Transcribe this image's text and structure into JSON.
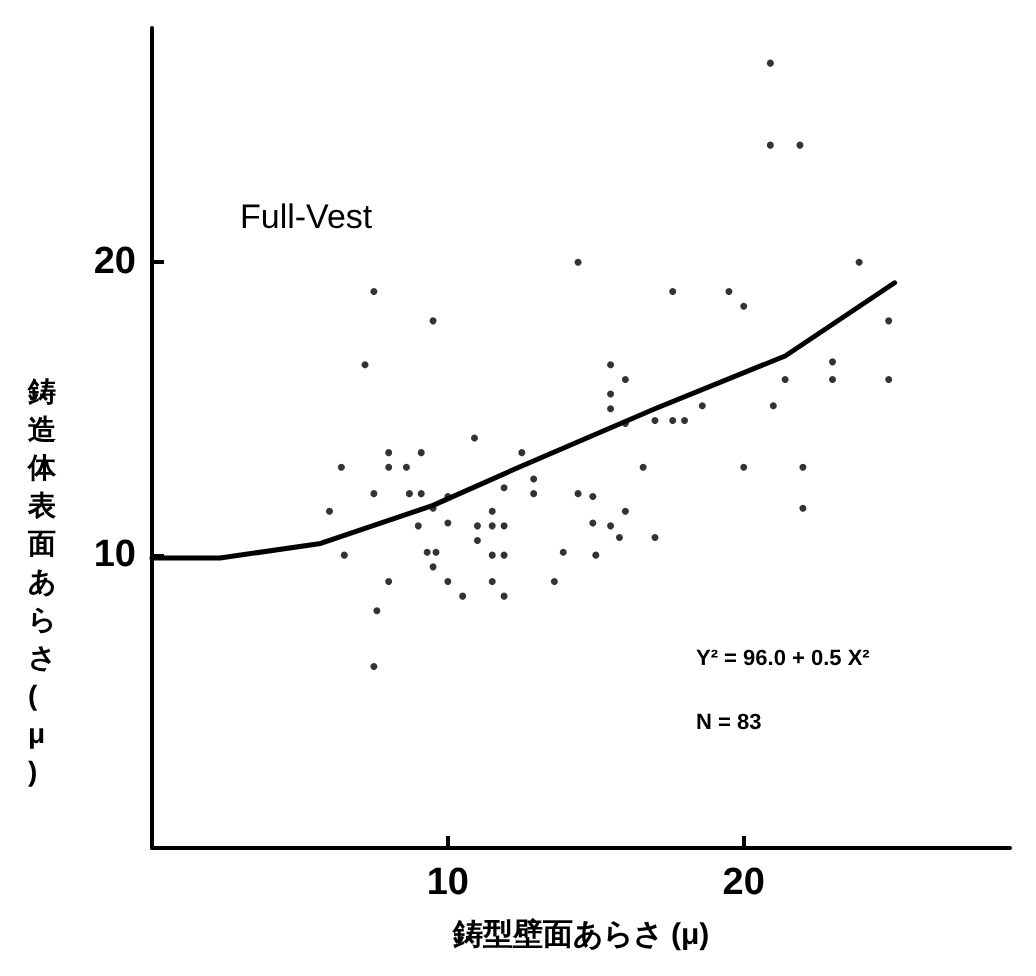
{
  "chart_data": {
    "type": "scatter",
    "xlabel": "鋳型壁面あらさ (μ)",
    "ylabel": "鋳造体表面あらさ(μ)",
    "xlim": [
      0,
      29
    ],
    "ylim": [
      0,
      28
    ],
    "xticks": [
      10,
      20
    ],
    "yticks": [
      10,
      20
    ],
    "grid": false,
    "marker": "circle",
    "annotations": [
      "Full-Vest",
      "Y² = 96.0 + 0.5 X²",
      "N = 83"
    ],
    "series": [
      {
        "color": "#000000",
        "x": [
          20.9,
          20.9,
          21.9,
          14.4,
          7.5,
          17.6,
          19.5,
          20.0,
          23.9,
          9.5,
          24.9,
          7.2,
          15.5,
          16.0,
          21.4,
          23.0,
          23.0,
          24.9,
          15.5,
          15.5,
          16.0,
          21.0,
          17.0,
          17.6,
          18.0,
          18.6,
          10.9,
          12.5,
          6.4,
          8.0,
          8.0,
          8.6,
          9.1,
          16.6,
          20.0,
          22.0,
          12.9,
          11.9,
          12.9,
          7.5,
          8.7,
          9.1,
          10.0,
          14.4,
          14.9,
          6.0,
          9.5,
          11.5,
          16.0,
          22.0,
          9.0,
          10.0,
          11.0,
          11.5,
          11.9,
          14.9,
          15.5,
          15.8,
          17.0,
          11.0,
          6.5,
          9.3,
          9.6,
          11.5,
          11.9,
          13.9,
          15.0,
          9.5,
          8.0,
          10.0,
          11.5,
          13.6,
          10.5,
          11.9,
          7.6,
          7.5
        ],
        "values": [
          26.8,
          24.0,
          24.0,
          20.0,
          19.0,
          19.0,
          19.0,
          18.5,
          20.0,
          18.0,
          18.0,
          16.5,
          16.5,
          16.0,
          16.0,
          16.6,
          16.0,
          16.0,
          15.5,
          15.0,
          14.5,
          15.1,
          14.6,
          14.6,
          14.6,
          15.1,
          14.0,
          13.5,
          13.0,
          13.5,
          13.0,
          13.0,
          13.5,
          13.0,
          13.0,
          13.0,
          12.6,
          12.3,
          12.1,
          12.1,
          12.1,
          12.1,
          12.0,
          12.1,
          12.0,
          11.5,
          11.6,
          11.5,
          11.5,
          11.6,
          11.0,
          11.1,
          11.0,
          11.0,
          11.0,
          11.1,
          11.0,
          10.6,
          10.6,
          10.5,
          10.0,
          10.1,
          10.1,
          10.0,
          10.0,
          10.1,
          10.0,
          9.6,
          9.1,
          9.1,
          9.1,
          9.1,
          8.6,
          8.6,
          8.1,
          6.2
        ]
      },
      {
        "type": "line",
        "color": "#000000",
        "marker": "none",
        "line_style": "solid",
        "x": [
          0,
          2.3,
          5.7,
          9.5,
          12.4,
          17,
          21.4,
          25.1
        ],
        "values": [
          9.9,
          9.9,
          10.4,
          11.7,
          13.0,
          15.0,
          16.8,
          19.3
        ]
      }
    ]
  }
}
